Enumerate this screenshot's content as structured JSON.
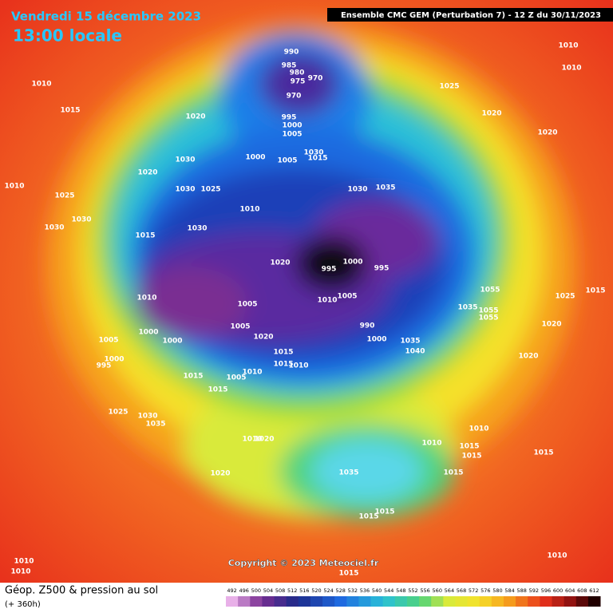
{
  "header": {
    "date": "Vendredi 15 décembre 2023",
    "time": "13:00 locale",
    "run": "Ensemble CMC GEM  (Perturbation 7)  -  12 Z du 30/11/2023"
  },
  "copyright": "Copyright © 2023 Meteociel.fr",
  "footer": {
    "title": "Géop. Z500 & pression au sol",
    "lead": "(+ 360h)"
  },
  "colorbar": {
    "levels": [
      492,
      496,
      500,
      504,
      508,
      512,
      516,
      520,
      524,
      528,
      532,
      536,
      540,
      544,
      548,
      552,
      556,
      560,
      564,
      568,
      572,
      576,
      580,
      584,
      588,
      592,
      596,
      600,
      604,
      608,
      612
    ]
  },
  "isobar_labels": [
    990,
    985,
    980,
    975,
    970,
    970,
    995,
    1000,
    1005,
    1010,
    1015,
    1020,
    1030,
    1030,
    1025,
    1020,
    1010,
    1025,
    1030,
    1030,
    1015,
    1030,
    1010,
    1000,
    1005,
    1030,
    1015,
    1030,
    1035,
    1025,
    1020,
    1010,
    1010,
    1020,
    1020,
    995,
    1000,
    995,
    1010,
    1005,
    1010,
    1005,
    1005,
    1020,
    1000,
    1000,
    1005,
    1000,
    995,
    1015,
    1015,
    1010,
    1015,
    1010,
    1005,
    1015,
    990,
    1000,
    1035,
    1040,
    1055,
    1055,
    1055,
    1035,
    1025,
    1015,
    1020,
    1020,
    1025,
    1030,
    1035,
    1010,
    1020,
    1020,
    1010,
    1010,
    1015,
    1015,
    1015,
    1015,
    1035,
    1015,
    1015,
    1010,
    1010,
    1010,
    1015
  ]
}
